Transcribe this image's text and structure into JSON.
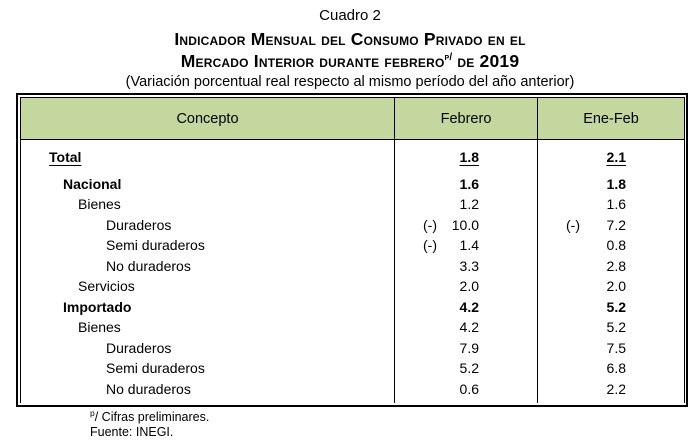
{
  "title": {
    "cuadro": "Cuadro 2",
    "line1": "Indicador Mensual del Consumo Privado en el",
    "line2_pre": "Mercado Interior durante febrero",
    "line2_sup": "p/",
    "line2_post": " de 2019",
    "subtitle": "(Variación porcentual real respecto al mismo período del año anterior)"
  },
  "table": {
    "columns": [
      "Concepto",
      "Febrero",
      "Ene-Feb"
    ],
    "rows": [
      {
        "concepto": "Total",
        "feb": "1.8",
        "ef": "2.1"
      },
      {
        "concepto": "Nacional",
        "feb": "1.6",
        "ef": "1.8"
      },
      {
        "concepto": "Bienes",
        "feb": "1.2",
        "ef": "1.6"
      },
      {
        "concepto": "Duraderos",
        "feb_sign": "(-)",
        "feb": "10.0",
        "ef_sign": "(-)",
        "ef": "7.2"
      },
      {
        "concepto": "Semi duraderos",
        "feb_sign": "(-)",
        "feb": "1.4",
        "ef": "0.8"
      },
      {
        "concepto": "No duraderos",
        "feb": "3.3",
        "ef": "2.8"
      },
      {
        "concepto": "Servicios",
        "feb": "2.0",
        "ef": "2.0"
      },
      {
        "concepto": "Importado",
        "feb": "4.2",
        "ef": "5.2"
      },
      {
        "concepto": "Bienes",
        "feb": "4.2",
        "ef": "5.2"
      },
      {
        "concepto": "Duraderos",
        "feb": "7.9",
        "ef": "7.5"
      },
      {
        "concepto": "Semi duraderos",
        "feb": "5.2",
        "ef": "6.8"
      },
      {
        "concepto": "No duraderos",
        "feb": "0.6",
        "ef": "2.2"
      }
    ]
  },
  "footnotes": {
    "note_sup": "p",
    "note_text": "/ Cifras preliminares.",
    "source": "Fuente: INEGI."
  },
  "colors": {
    "header_bg": "#c4d79e",
    "border": "#000000",
    "text": "#000000"
  }
}
